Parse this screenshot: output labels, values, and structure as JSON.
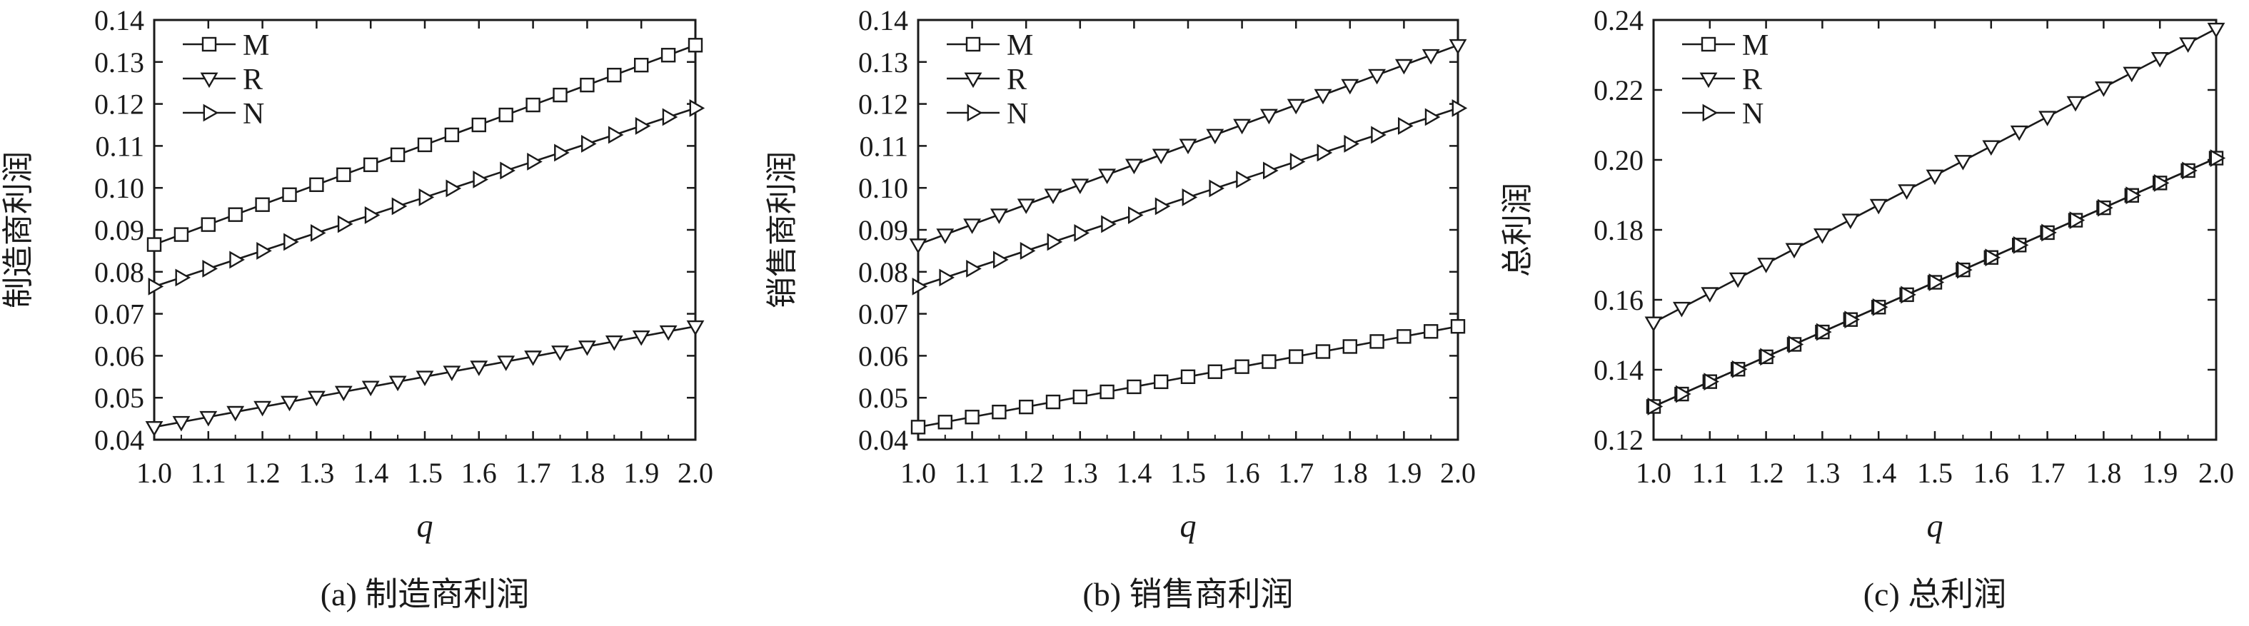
{
  "figure": {
    "captions": [
      "(a) 制造商利润",
      "(b) 销售商利润",
      "(c) 总利润"
    ]
  },
  "chart_data": [
    {
      "type": "line",
      "title": "",
      "caption": "(a) 制造商利润",
      "xlabel": "q",
      "ylabel": "制造商利润",
      "xlim": [
        1.0,
        2.0
      ],
      "ylim": [
        0.04,
        0.14
      ],
      "x_ticks": [
        "1.0",
        "1.1",
        "1.2",
        "1.3",
        "1.4",
        "1.5",
        "1.6",
        "1.7",
        "1.8",
        "1.9",
        "2.0"
      ],
      "y_ticks": [
        "0.04",
        "0.05",
        "0.06",
        "0.07",
        "0.08",
        "0.09",
        "0.10",
        "0.11",
        "0.12",
        "0.13",
        "0.14"
      ],
      "grid": false,
      "legend_position": "top-left",
      "series": [
        {
          "name": "M",
          "marker": "square",
          "x": [
            1.0,
            2.0
          ],
          "y": [
            0.0865,
            0.134
          ]
        },
        {
          "name": "R",
          "marker": "triangle-down",
          "x": [
            1.0,
            2.0
          ],
          "y": [
            0.043,
            0.067
          ]
        },
        {
          "name": "N",
          "marker": "triangle-right",
          "x": [
            1.0,
            2.0
          ],
          "y": [
            0.0765,
            0.119
          ]
        }
      ]
    },
    {
      "type": "line",
      "title": "",
      "caption": "(b) 销售商利润",
      "xlabel": "q",
      "ylabel": "销售商利润",
      "xlim": [
        1.0,
        2.0
      ],
      "ylim": [
        0.04,
        0.14
      ],
      "x_ticks": [
        "1.0",
        "1.1",
        "1.2",
        "1.3",
        "1.4",
        "1.5",
        "1.6",
        "1.7",
        "1.8",
        "1.9",
        "2.0"
      ],
      "y_ticks": [
        "0.04",
        "0.05",
        "0.06",
        "0.07",
        "0.08",
        "0.09",
        "0.10",
        "0.11",
        "0.12",
        "0.13",
        "0.14"
      ],
      "grid": false,
      "legend_position": "top-left",
      "series": [
        {
          "name": "M",
          "marker": "square",
          "x": [
            1.0,
            2.0
          ],
          "y": [
            0.043,
            0.067
          ]
        },
        {
          "name": "R",
          "marker": "triangle-down",
          "x": [
            1.0,
            2.0
          ],
          "y": [
            0.0865,
            0.134
          ]
        },
        {
          "name": "N",
          "marker": "triangle-right",
          "x": [
            1.0,
            2.0
          ],
          "y": [
            0.0765,
            0.119
          ]
        }
      ]
    },
    {
      "type": "line",
      "title": "",
      "caption": "(c) 总利润",
      "xlabel": "q",
      "ylabel": "总利润",
      "xlim": [
        1.0,
        2.0
      ],
      "ylim": [
        0.12,
        0.24
      ],
      "x_ticks": [
        "1.0",
        "1.1",
        "1.2",
        "1.3",
        "1.4",
        "1.5",
        "1.6",
        "1.7",
        "1.8",
        "1.9",
        "2.0"
      ],
      "y_ticks": [
        "0.12",
        "0.14",
        "0.16",
        "0.18",
        "0.20",
        "0.22",
        "0.24"
      ],
      "grid": false,
      "legend_position": "top-left",
      "series": [
        {
          "name": "M",
          "marker": "square",
          "x": [
            1.0,
            2.0
          ],
          "y": [
            0.1295,
            0.2005
          ]
        },
        {
          "name": "R",
          "marker": "triangle-down",
          "x": [
            1.0,
            2.0
          ],
          "y": [
            0.1535,
            0.2375
          ]
        },
        {
          "name": "N",
          "marker": "triangle-right",
          "x": [
            1.0,
            2.0
          ],
          "y": [
            0.1295,
            0.2005
          ]
        }
      ]
    }
  ]
}
